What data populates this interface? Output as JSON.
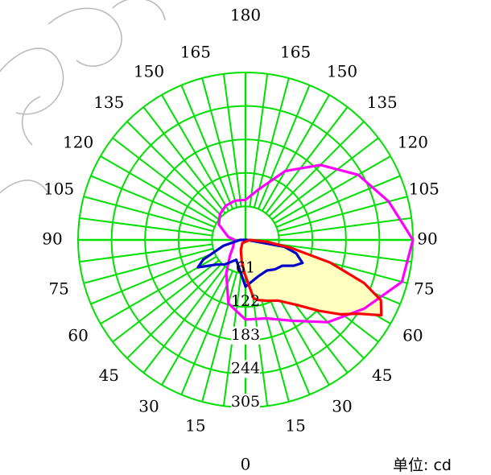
{
  "chart_data": {
    "type": "polar",
    "unit_label": "单位: cd",
    "radial_tick_labels": [
      "61",
      "122",
      "183",
      "244",
      "305"
    ],
    "radial_ticks": [
      61,
      122,
      183,
      244,
      305
    ],
    "rmax": 305,
    "angle_labels_left": [
      "0",
      "15",
      "30",
      "45",
      "60",
      "75",
      "90",
      "105",
      "120",
      "135",
      "150",
      "165",
      "180"
    ],
    "angle_labels_right": [
      "15",
      "30",
      "45",
      "60",
      "75",
      "90",
      "105",
      "120",
      "135",
      "150",
      "165"
    ],
    "grid_color": "#00e000",
    "angle_step": 7.5,
    "grid": true,
    "series": [
      {
        "color": "#ff00ff",
        "points": [
          [
            -90,
            20
          ],
          [
            -100,
            32
          ],
          [
            -120,
            56
          ],
          [
            -135,
            66
          ],
          [
            -150,
            72
          ],
          [
            -165,
            74
          ],
          [
            -180,
            73
          ],
          [
            165,
            96
          ],
          [
            150,
            145
          ],
          [
            135,
            193
          ],
          [
            120,
            237
          ],
          [
            105,
            270
          ],
          [
            90,
            305
          ],
          [
            75,
            295
          ],
          [
            60,
            250
          ],
          [
            45,
            212
          ],
          [
            30,
            170
          ],
          [
            15,
            148
          ],
          [
            0,
            145
          ],
          [
            -15,
            120
          ],
          [
            -30,
            70
          ],
          [
            -45,
            40
          ],
          [
            -60,
            26
          ],
          [
            -75,
            22
          ],
          [
            -90,
            20
          ]
        ]
      },
      {
        "color": "#0000cc",
        "points": [
          [
            -90,
            10
          ],
          [
            -75,
            42
          ],
          [
            -65,
            85
          ],
          [
            -60,
            100
          ],
          [
            -50,
            70
          ],
          [
            -40,
            58
          ],
          [
            -25,
            40
          ],
          [
            0,
            85
          ],
          [
            20,
            70
          ],
          [
            35,
            68
          ],
          [
            45,
            76
          ],
          [
            55,
            82
          ],
          [
            62,
            100
          ],
          [
            68,
            112
          ],
          [
            75,
            96
          ],
          [
            80,
            72
          ],
          [
            90,
            3
          ],
          [
            -90,
            10
          ]
        ]
      },
      {
        "color": "#ff0000",
        "points": [
          [
            90,
            8
          ],
          [
            85,
            40
          ],
          [
            80,
            85
          ],
          [
            75,
            160
          ],
          [
            70,
            230
          ],
          [
            66,
            270
          ],
          [
            61,
            283
          ],
          [
            57,
            247
          ],
          [
            52,
            220
          ],
          [
            46,
            186
          ],
          [
            38,
            150
          ],
          [
            28,
            125
          ],
          [
            20,
            118
          ],
          [
            12,
            112
          ],
          [
            8,
            108
          ],
          [
            5,
            87
          ],
          [
            -2,
            60
          ],
          [
            -10,
            40
          ],
          [
            -25,
            20
          ],
          [
            -45,
            8
          ],
          [
            90,
            8
          ]
        ]
      }
    ],
    "fill_color": "#ffffc0"
  }
}
